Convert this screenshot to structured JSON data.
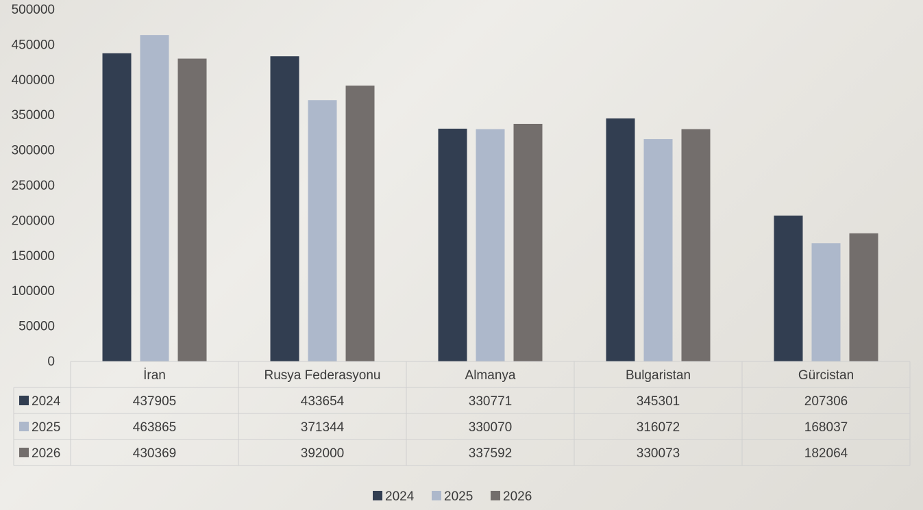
{
  "chart_data": {
    "type": "bar",
    "categories": [
      "İran",
      "Rusya Federasyonu",
      "Almanya",
      "Bulgaristan",
      "Gürcistan"
    ],
    "series": [
      {
        "name": "2024",
        "color": "#323e51",
        "values": [
          437905,
          433654,
          330771,
          345301,
          207306
        ]
      },
      {
        "name": "2025",
        "color": "#adb8cb",
        "values": [
          463865,
          371344,
          330070,
          316072,
          168037
        ]
      },
      {
        "name": "2026",
        "color": "#736e6c",
        "values": [
          430369,
          392000,
          337592,
          330073,
          182064
        ]
      }
    ],
    "ylim": [
      0,
      500000
    ],
    "yticks": [
      0,
      50000,
      100000,
      150000,
      200000,
      250000,
      300000,
      350000,
      400000,
      450000,
      500000
    ],
    "title": "",
    "xlabel": "",
    "ylabel": "",
    "data_table": true,
    "legend_position": "bottom"
  }
}
